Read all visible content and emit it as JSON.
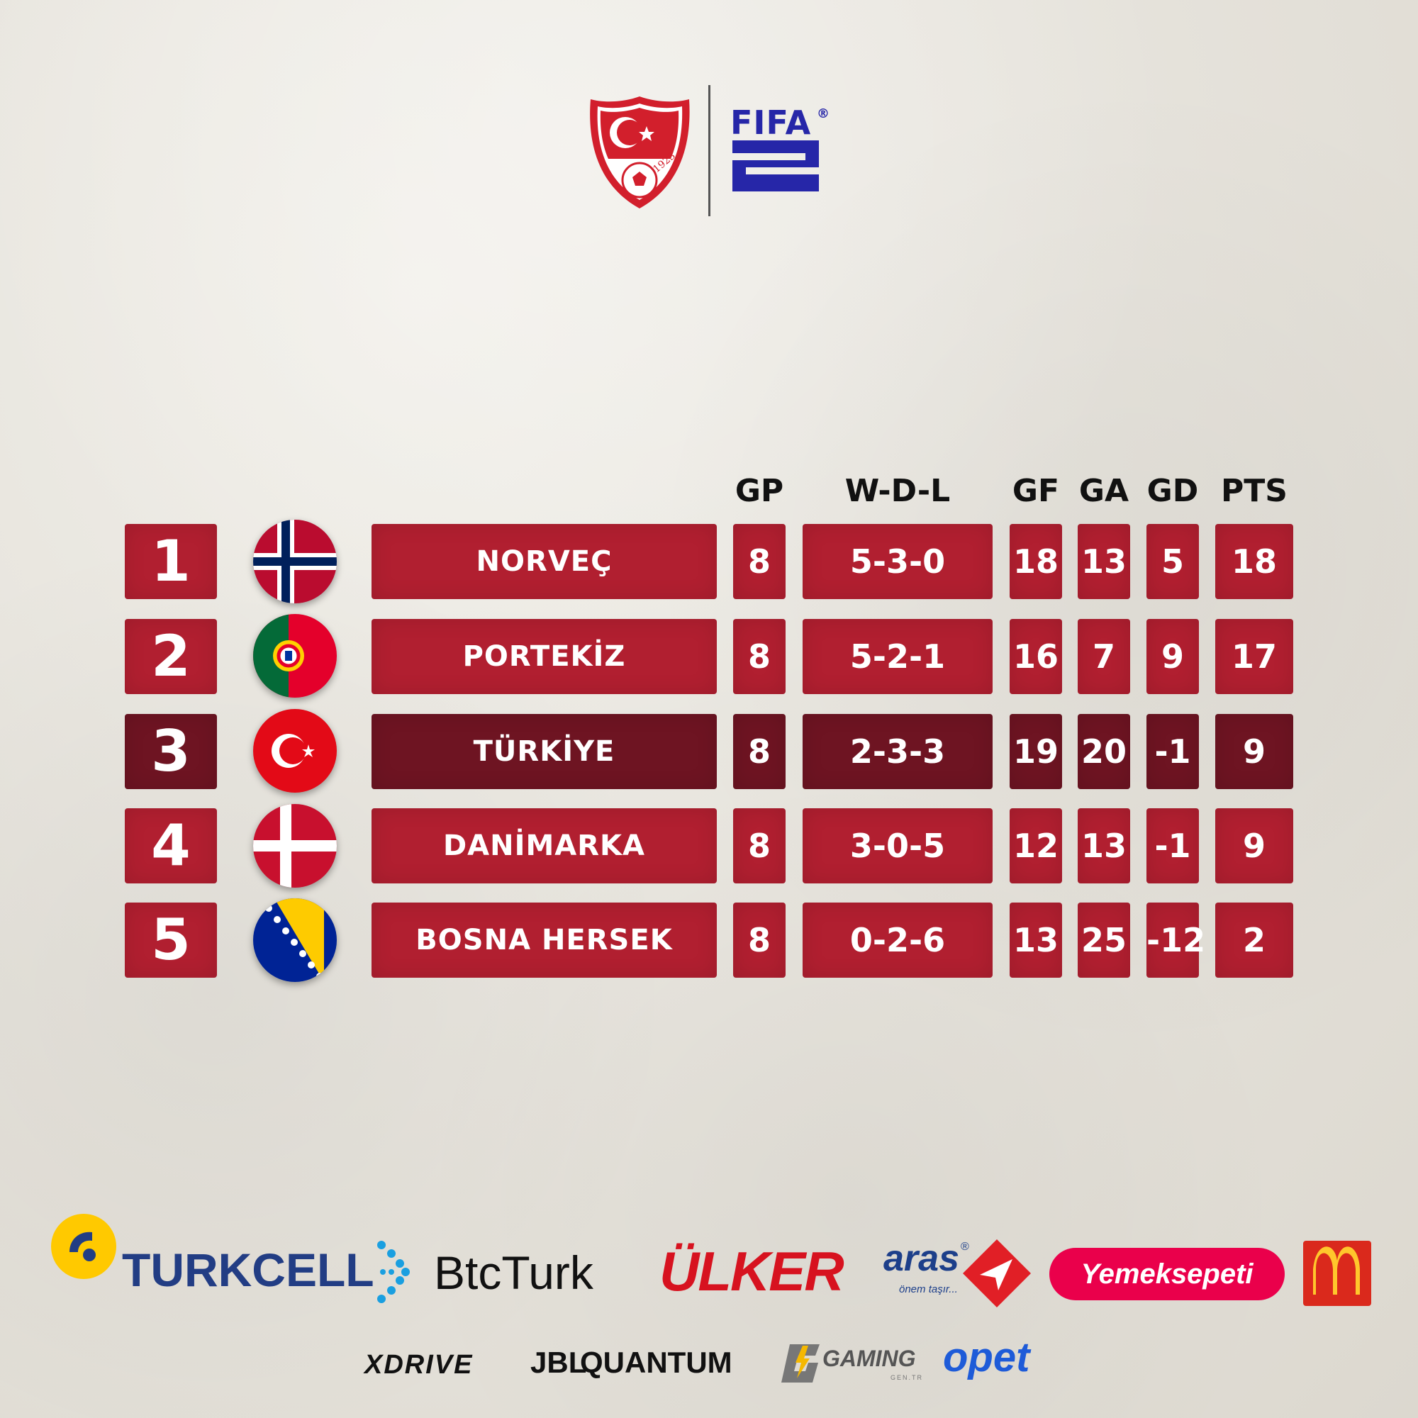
{
  "header": {
    "federation_logo_icon": "tff-crest-icon",
    "federation_year": "1923",
    "fifa_label": "FIFA",
    "fifa_reg": "®"
  },
  "table": {
    "columns": {
      "gp": "GP",
      "wdl": "W-D-L",
      "gf": "GF",
      "ga": "GA",
      "gd": "GD",
      "pts": "PTS"
    },
    "rows": [
      {
        "rank": "1",
        "flag": "norway-flag-icon",
        "team": "NORVEÇ",
        "gp": "8",
        "wdl": "5-3-0",
        "gf": "18",
        "ga": "13",
        "gd": "5",
        "pts": "18"
      },
      {
        "rank": "2",
        "flag": "portugal-flag-icon",
        "team": "PORTEKİZ",
        "gp": "8",
        "wdl": "5-2-1",
        "gf": "16",
        "ga": "7",
        "gd": "9",
        "pts": "17"
      },
      {
        "rank": "3",
        "flag": "turkey-flag-icon",
        "team": "TÜRKİYE",
        "gp": "8",
        "wdl": "2-3-3",
        "gf": "19",
        "ga": "20",
        "gd": "-1",
        "pts": "9"
      },
      {
        "rank": "4",
        "flag": "denmark-flag-icon",
        "team": "DANİMARKA",
        "gp": "8",
        "wdl": "3-0-5",
        "gf": "12",
        "ga": "13",
        "gd": "-1",
        "pts": "9"
      },
      {
        "rank": "5",
        "flag": "bosnia-flag-icon",
        "team": "BOSNA HERSEK",
        "gp": "8",
        "wdl": "0-2-6",
        "gf": "13",
        "ga": "25",
        "gd": "-12",
        "pts": "2"
      }
    ],
    "colors": {
      "row": "#b11f30",
      "highlight_row": "#6e1422"
    }
  },
  "sponsors": {
    "turkcell": "TURKCELL",
    "btcturk": "BtcTurk",
    "ulker": "ÜLKER",
    "aras": "aras",
    "aras_reg": "®",
    "aras_tagline": "önem taşır...",
    "yemeksepeti": "Yemeksepeti",
    "mcdonalds_icon": "mcdonalds-arches-icon",
    "xdrive": "XDRIVE",
    "jbl": "JBL",
    "quantum": "QUANTUM",
    "gaming": "GAMING",
    "gaming_sub": "GEN.TR",
    "opet": "opet"
  }
}
